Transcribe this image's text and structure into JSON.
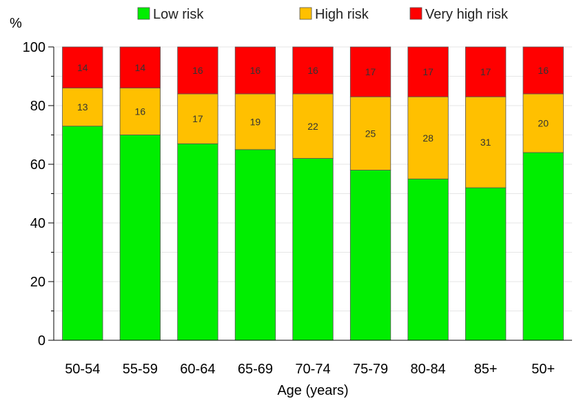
{
  "chart_data": {
    "type": "bar",
    "stacked": true,
    "categories": [
      "50-54",
      "55-59",
      "60-64",
      "65-69",
      "70-74",
      "75-79",
      "80-84",
      "85+",
      "50+"
    ],
    "series": [
      {
        "name": "Low risk",
        "color": "#00ee00",
        "values": [
          73,
          70,
          67,
          65,
          62,
          58,
          55,
          52,
          64
        ]
      },
      {
        "name": "High risk",
        "color": "#ffc000",
        "values": [
          13,
          16,
          17,
          19,
          22,
          25,
          28,
          31,
          20
        ]
      },
      {
        "name": "Very high risk",
        "color": "#ff0000",
        "values": [
          14,
          14,
          16,
          16,
          16,
          17,
          17,
          17,
          16
        ]
      }
    ],
    "labeled_series": [
      "High risk",
      "Very high risk"
    ],
    "ylabel": "%",
    "xlabel": "Age (years)",
    "ylim": [
      0,
      100
    ],
    "yticks": [
      0,
      20,
      40,
      60,
      80,
      100
    ],
    "grid": true,
    "legend_position": "top"
  }
}
